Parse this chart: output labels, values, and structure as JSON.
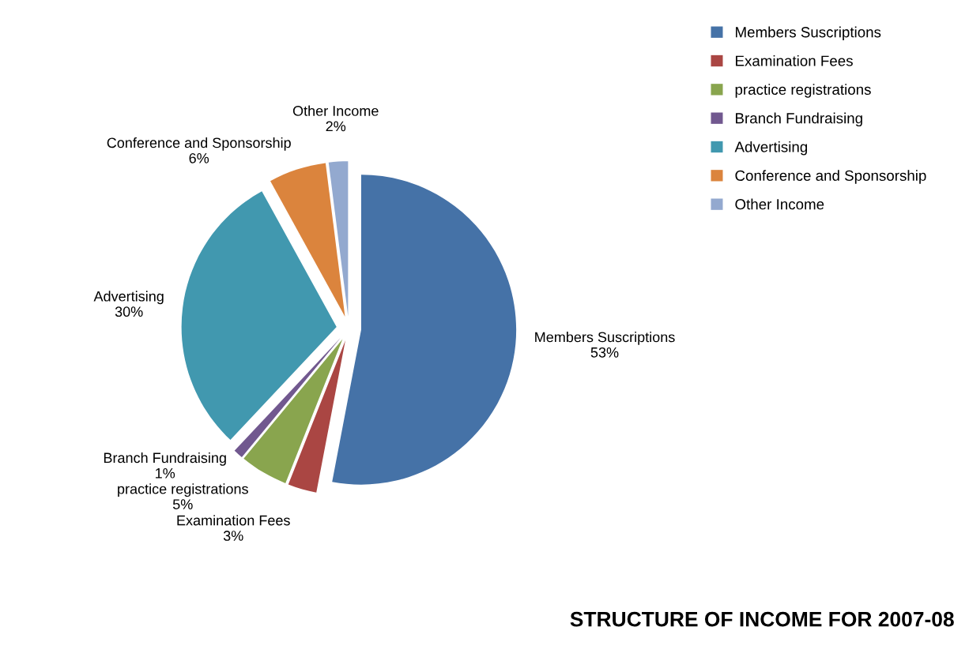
{
  "chart_data": {
    "type": "pie",
    "title": "STRUCTURE OF INCOME FOR 2007-08",
    "categories": [
      "Members Suscriptions",
      "Examination Fees",
      "practice registrations",
      "Branch Fundraising",
      "Advertising",
      "Conference and Sponsorship",
      "Other Income"
    ],
    "values": [
      53,
      3,
      5,
      1,
      30,
      6,
      2
    ],
    "colors": [
      "#4572a7",
      "#aa4643",
      "#89a54e",
      "#71588f",
      "#4198af",
      "#db843d",
      "#93a9cf"
    ],
    "value_labels": [
      "53%",
      "3%",
      "5%",
      "1%",
      "30%",
      "6%",
      "2%"
    ],
    "legend": "top right"
  }
}
